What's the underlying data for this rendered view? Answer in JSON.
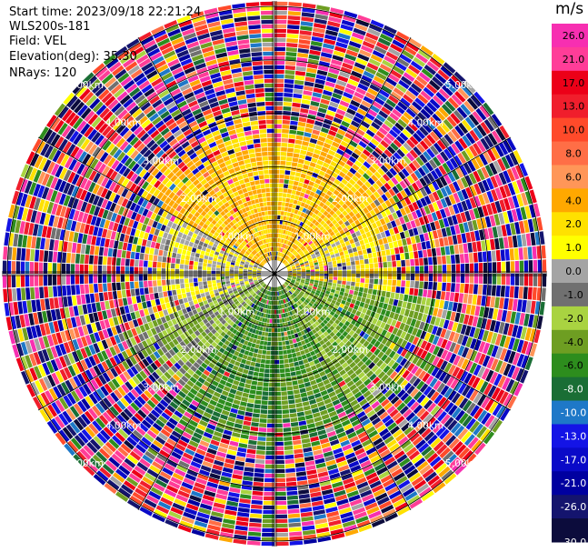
{
  "info": {
    "start_time": "Start time: 2023/09/18 22:21:24",
    "instrument": "WLS200s-181",
    "field": "Field: VEL",
    "elevation": "Elevation(deg): 35.30",
    "nrays": "NRays: 120"
  },
  "chart_data": {
    "type": "heatmap",
    "projection": "polar-ppi",
    "field": "VEL",
    "units": "m/s",
    "n_rays": 120,
    "elevation_deg": 35.3,
    "range_rings_km": [
      1.0,
      2.0,
      3.0,
      4.0,
      5.0
    ],
    "range_ring_labels": [
      "1.00km",
      "2.00km",
      "3.00km",
      "4.00km",
      "5.00km"
    ],
    "spoke_angles_deg": [
      0,
      30,
      60,
      90,
      120,
      150,
      180,
      210,
      240,
      270,
      300,
      330
    ],
    "colorbar": {
      "unit_label": "m/s",
      "ticks": [
        "26.0",
        "21.0",
        "17.0",
        "13.0",
        "10.0",
        "8.0",
        "6.0",
        "4.0",
        "2.0",
        "1.0",
        "0.0",
        "-1.0",
        "-2.0",
        "-4.0",
        "-6.0",
        "-8.0",
        "-10.0",
        "-13.0",
        "-17.0",
        "-21.0",
        "-26.0",
        "-30.0"
      ],
      "bounds": [
        30,
        26,
        21,
        17,
        13,
        10,
        8,
        6,
        4,
        2,
        1,
        0,
        -1,
        -2,
        -4,
        -6,
        -8,
        -10,
        -13,
        -17,
        -21,
        -26,
        -30
      ],
      "colors": [
        "#f72fb1",
        "#ff3d98",
        "#ec0018",
        "#f01e2c",
        "#ff4a2a",
        "#ff6e46",
        "#ff9658",
        "#ffa800",
        "#ffe100",
        "#ffff00",
        "#a4a4a4",
        "#707070",
        "#a9d341",
        "#6e9e22",
        "#2d8d1d",
        "#1a6e35",
        "#1e78c8",
        "#1414e6",
        "#0a0ac8",
        "#0000a0",
        "#14146e",
        "#0c0c3c"
      ]
    },
    "sectors": [
      {
        "azimuth_range_deg": [
          300,
          60
        ],
        "description_values_m_s": [
          2,
          6
        ],
        "range_km": [
          0,
          2.2
        ]
      },
      {
        "azimuth_range_deg": [
          60,
          100
        ],
        "description_values_m_s": [
          0,
          4
        ],
        "range_km": [
          0,
          2.0
        ]
      },
      {
        "azimuth_range_deg": [
          100,
          250
        ],
        "description_values_m_s": [
          -8,
          -1
        ],
        "range_km": [
          0,
          2.6
        ]
      },
      {
        "azimuth_range_deg": [
          250,
          300
        ],
        "description_values_m_s": [
          0,
          2
        ],
        "range_km": [
          0,
          1.8
        ]
      }
    ]
  }
}
